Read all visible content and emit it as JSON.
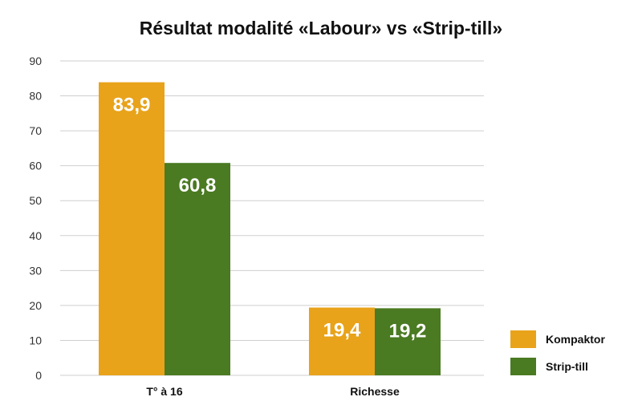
{
  "chart_data": {
    "type": "bar",
    "title": "Résultat modalité «Labour» vs «Strip-till»",
    "categories": [
      "T° à 16",
      "Richesse"
    ],
    "series": [
      {
        "name": "Kompaktor",
        "values": [
          83.9,
          19.4
        ],
        "labels": [
          "83,9",
          "19,4"
        ],
        "color": "#E8A31A"
      },
      {
        "name": "Strip-till",
        "values": [
          60.8,
          19.2
        ],
        "labels": [
          "60,8",
          "19,2"
        ],
        "color": "#4A7A22"
      }
    ],
    "ylim": [
      0,
      90
    ],
    "yticks": [
      "0",
      "10",
      "20",
      "30",
      "40",
      "50",
      "60",
      "70",
      "80",
      "90"
    ],
    "grid": true,
    "legend_position": "right"
  }
}
